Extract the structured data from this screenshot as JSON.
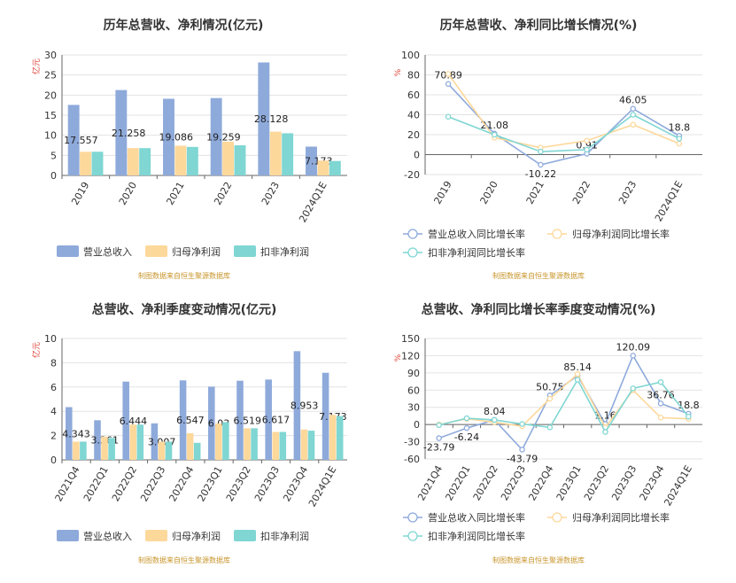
{
  "chart_data": [
    {
      "type": "bar",
      "title": "历年总营收、净利情况(亿元)",
      "unit": "亿元",
      "categories": [
        "2019",
        "2020",
        "2021",
        "2022",
        "2023",
        "2024Q1E"
      ],
      "ylim": [
        0,
        30
      ],
      "yticks": [
        0,
        5,
        10,
        15,
        20,
        25,
        30
      ],
      "series": [
        {
          "name": "营业总收入",
          "color": "#8eaadb",
          "values": [
            17.557,
            21.258,
            19.086,
            19.259,
            28.128,
            7.173
          ],
          "labels": [
            17.557,
            21.258,
            19.086,
            19.259,
            28.128,
            7.173
          ]
        },
        {
          "name": "归母净利润",
          "color": "#fdd89b",
          "values": [
            5.9,
            6.8,
            7.4,
            8.4,
            10.9,
            3.7
          ]
        },
        {
          "name": "扣非净利润",
          "color": "#7fd6d2",
          "values": [
            5.9,
            6.8,
            7.1,
            7.5,
            10.5,
            3.6
          ]
        }
      ],
      "grid": true,
      "legend": "bottom",
      "source": "制图数据来自恒生聚源数据库"
    },
    {
      "type": "line",
      "title": "历年总营收、净利同比增长情况(%)",
      "unit": "%",
      "categories": [
        "2019",
        "2020",
        "2021",
        "2022",
        "2023",
        "2024Q1E"
      ],
      "ylim": [
        -20,
        100
      ],
      "yticks": [
        -20,
        0,
        20,
        40,
        60,
        80,
        100
      ],
      "series": [
        {
          "name": "营业总收入同比增长率",
          "color": "#8eaadb",
          "values": [
            70.89,
            21.08,
            -10.22,
            0.91,
            46.05,
            18.8
          ],
          "labels": [
            70.89,
            21.08,
            -10.22,
            0.91,
            46.05,
            18.8
          ]
        },
        {
          "name": "归母净利润同比增长率",
          "color": "#fdd89b",
          "values": [
            81,
            17,
            7,
            14,
            30,
            11
          ]
        },
        {
          "name": "扣非净利润同比增长率",
          "color": "#7fd6d2",
          "values": [
            38,
            20,
            3,
            5,
            40,
            16
          ]
        }
      ],
      "grid": true,
      "legend": "bottom",
      "source": "制图数据来自恒生聚源数据库"
    },
    {
      "type": "bar",
      "title": "总营收、净利季度变动情况(亿元)",
      "unit": "亿元",
      "categories": [
        "2021Q4",
        "2022Q1",
        "2022Q2",
        "2022Q3",
        "2022Q4",
        "2023Q1",
        "2023Q2",
        "2023Q3",
        "2023Q4",
        "2024Q1E"
      ],
      "ylim": [
        0,
        10
      ],
      "yticks": [
        0,
        2,
        4,
        6,
        8,
        10
      ],
      "series": [
        {
          "name": "营业总收入",
          "color": "#8eaadb",
          "values": [
            4.343,
            3.261,
            6.444,
            3.007,
            6.547,
            6.03,
            6.519,
            6.617,
            8.953,
            7.173
          ],
          "labels": [
            4.343,
            3.261,
            6.444,
            3.007,
            6.547,
            6.03,
            6.519,
            6.617,
            8.953,
            7.173
          ]
        },
        {
          "name": "归母净利润",
          "color": "#fdd89b",
          "values": [
            1.5,
            1.9,
            2.9,
            1.5,
            2.2,
            3.0,
            2.6,
            2.3,
            2.5,
            3.7
          ]
        },
        {
          "name": "扣非净利润",
          "color": "#7fd6d2",
          "values": [
            1.5,
            1.8,
            2.9,
            1.5,
            1.4,
            3.1,
            2.6,
            2.3,
            2.4,
            3.6
          ]
        }
      ],
      "grid": true,
      "legend": "bottom",
      "source": "制图数据来自恒生聚源数据库"
    },
    {
      "type": "line",
      "title": "总营收、净利同比增长率季度变动情况(%)",
      "unit": "%",
      "categories": [
        "2021Q4",
        "2022Q1",
        "2022Q2",
        "2022Q3",
        "2022Q4",
        "2023Q1",
        "2023Q2",
        "2023Q3",
        "2023Q4",
        "2024Q1E"
      ],
      "ylim": [
        -60,
        150
      ],
      "yticks": [
        -60,
        -30,
        0,
        30,
        60,
        90,
        120,
        150
      ],
      "series": [
        {
          "name": "营业总收入同比增长率",
          "color": "#8eaadb",
          "values": [
            -23.79,
            -6.24,
            8.04,
            -43.79,
            50.75,
            85.14,
            1.16,
            120.09,
            36.76,
            18.8
          ],
          "labels": [
            -23.79,
            -6.24,
            8.04,
            -43.79,
            50.75,
            85.14,
            1.16,
            120.09,
            36.76,
            18.8
          ]
        },
        {
          "name": "归母净利润同比增长率",
          "color": "#fdd89b",
          "values": [
            0,
            10,
            4,
            -3,
            45,
            88,
            -5,
            60,
            12,
            10
          ]
        },
        {
          "name": "扣非净利润同比增长率",
          "color": "#7fd6d2",
          "values": [
            -1,
            11,
            8,
            1,
            -5,
            78,
            -13,
            63,
            74,
            14
          ]
        }
      ],
      "grid": true,
      "legend": "bottom",
      "source": "制图数据来自恒生聚源数据库"
    }
  ]
}
